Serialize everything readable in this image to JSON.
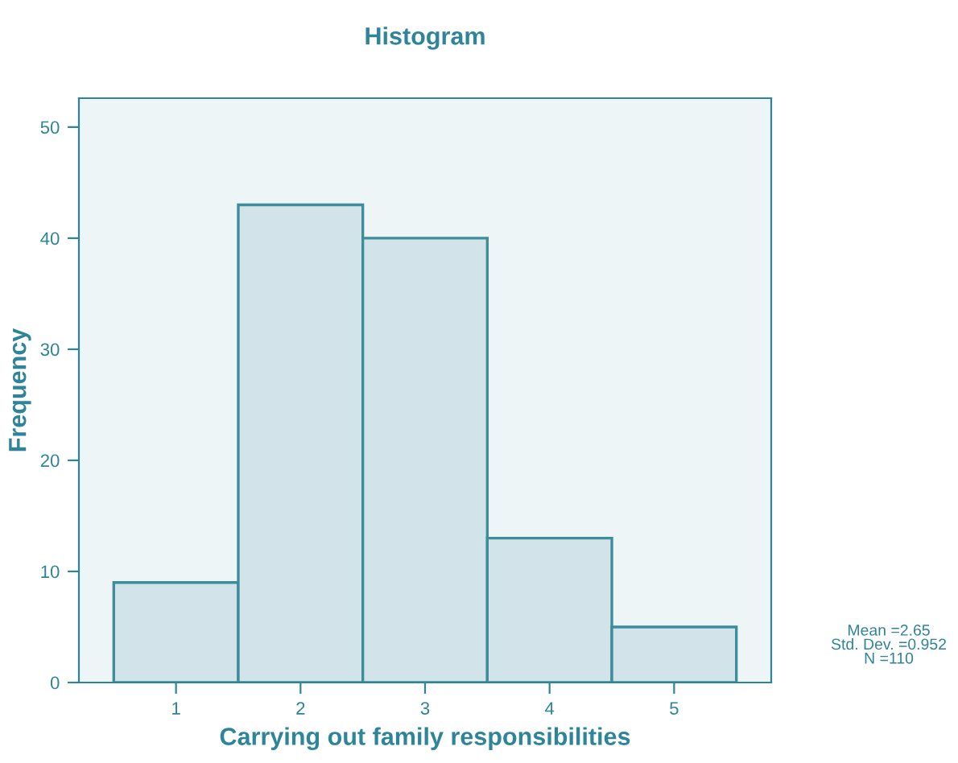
{
  "chart_data": {
    "type": "histogram",
    "title": "Histogram",
    "xlabel": "Carrying out family responsibilities",
    "ylabel": "Frequency",
    "bins": [
      0.5,
      1.5,
      2.5,
      3.5,
      4.5,
      5.5
    ],
    "values": [
      9,
      43,
      40,
      13,
      5
    ],
    "color": "#d2e4ea",
    "xlim": [
      0.22,
      5.78
    ],
    "xticks": [
      1,
      2,
      3,
      4,
      5
    ],
    "ylim": [
      0,
      52.6
    ],
    "yticks": [
      0,
      10,
      20,
      30,
      40,
      50
    ],
    "grid": false,
    "legend": false,
    "annotations": [
      "Mean =2.65\nStd. Dev. =0.952\nN =110"
    ]
  }
}
